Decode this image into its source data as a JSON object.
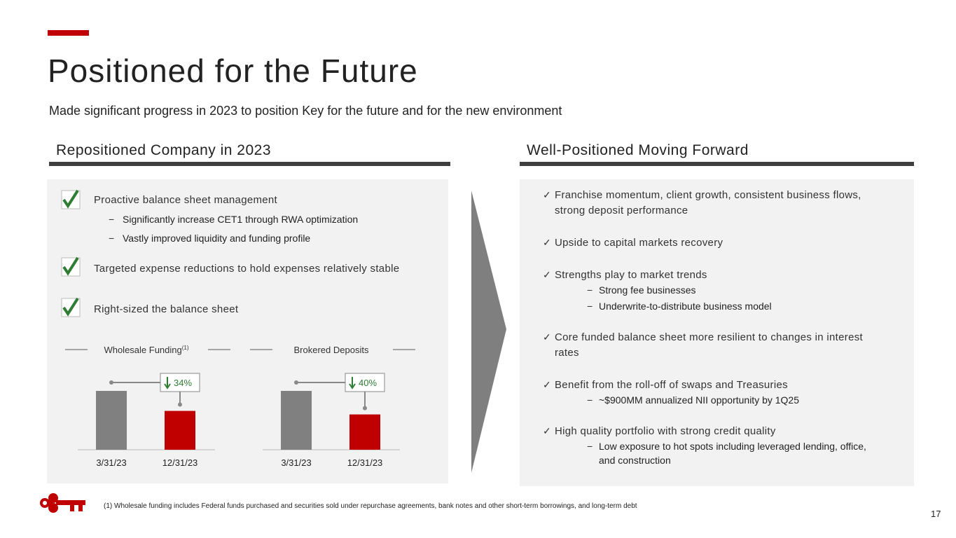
{
  "header": {
    "title": "Positioned for the Future",
    "subtitle": "Made significant progress in 2023 to position Key for the future and for the new environment"
  },
  "left": {
    "heading": "Repositioned Company in 2023",
    "items": [
      {
        "text": "Proactive balance sheet management",
        "subs": [
          "Significantly increase CET1 through RWA optimization",
          "Vastly improved liquidity and funding profile"
        ]
      },
      {
        "text": "Targeted expense reductions to hold expenses relatively stable",
        "subs": []
      },
      {
        "text": "Right-sized the balance sheet",
        "subs": []
      }
    ],
    "charts": [
      {
        "type": "bar",
        "title": "Wholesale Funding",
        "title_note": "(1)",
        "categories": [
          "3/31/23",
          "12/31/23"
        ],
        "values": [
          100,
          66
        ],
        "colors": [
          "#808080",
          "#c00000"
        ],
        "change_label": "34%"
      },
      {
        "type": "bar",
        "title": "Brokered Deposits",
        "categories": [
          "3/31/23",
          "12/31/23"
        ],
        "values": [
          100,
          60
        ],
        "colors": [
          "#808080",
          "#c00000"
        ],
        "change_label": "40%"
      }
    ]
  },
  "right": {
    "heading": "Well-Positioned Moving Forward",
    "items": [
      {
        "text": [
          "Franchise momentum, client growth, consistent business flows,",
          "strong deposit performance"
        ],
        "subs": []
      },
      {
        "text": [
          "Upside to capital markets recovery"
        ],
        "subs": []
      },
      {
        "text": [
          "Strengths play to market trends"
        ],
        "subs": [
          [
            "Strong fee businesses"
          ],
          [
            "Underwrite-to-distribute business model"
          ]
        ]
      },
      {
        "text": [
          "Core funded balance sheet more resilient to changes in interest",
          "rates"
        ],
        "subs": []
      },
      {
        "text": [
          "Benefit from the roll-off of swaps and Treasuries"
        ],
        "subs": [
          [
            "~$900MM annualized NII opportunity by 1Q25"
          ]
        ]
      },
      {
        "text": [
          "High quality portfolio with strong credit quality"
        ],
        "subs": [
          [
            "Low exposure to hot spots including leveraged lending, office,",
            "and construction"
          ]
        ]
      }
    ]
  },
  "footer": {
    "footnote": "(1) Wholesale funding includes Federal funds purchased and securities sold under repurchase agreements, bank notes and other short-term borrowings, and long-term debt",
    "page": "17"
  }
}
